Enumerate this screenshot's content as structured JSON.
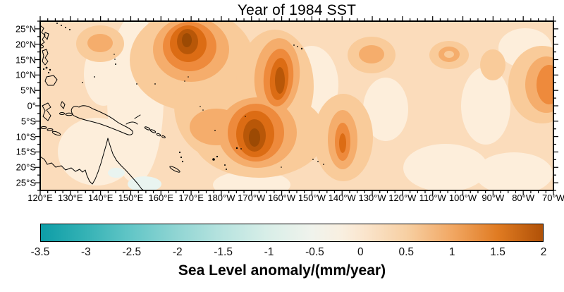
{
  "title": "Year of 1984 SST",
  "chart_data": {
    "type": "filled-contour-map",
    "title": "Year of 1984 SST",
    "region": "Tropical Pacific, 120°E–70°W, 25°S–25°N, coastlines drawn in black",
    "x_axis": {
      "tick_labels": [
        "120°E",
        "130°E",
        "140°E",
        "150°E",
        "160°E",
        "170°E",
        "180°W",
        "170°W",
        "160°W",
        "150°W",
        "140°W",
        "130°W",
        "120°W",
        "110°W",
        "100°W",
        "90°W",
        "80°W",
        "70°W"
      ],
      "span_deg": 170,
      "major_tick_deg": 10,
      "minor_tick_deg": 2.5
    },
    "y_axis": {
      "tick_labels": [
        "25°N",
        "20°N",
        "15°N",
        "10°N",
        "5°N",
        "0°",
        "5°S",
        "10°S",
        "15°S",
        "20°S",
        "25°S"
      ],
      "top_lat": 27.5,
      "bottom_lat": -27.5,
      "major_tick_deg": 5,
      "minor_tick_deg": 2.5
    },
    "colorbar": {
      "label": "Sea Level anomaly/(mm/year)",
      "tick_labels": [
        "-3.5",
        "-3",
        "-2.5",
        "-2",
        "-1.5",
        "-1",
        "-0.5",
        "0",
        "0.5",
        "1",
        "1.5",
        "2"
      ],
      "min": -3.5,
      "max": 2,
      "stops": [
        {
          "pos": 0.0,
          "color": "#0d9da7"
        },
        {
          "pos": 0.09,
          "color": "#35b2b5"
        },
        {
          "pos": 0.18,
          "color": "#63c6c7"
        },
        {
          "pos": 0.27,
          "color": "#90d5d3"
        },
        {
          "pos": 0.36,
          "color": "#b7e3df"
        },
        {
          "pos": 0.45,
          "color": "#d8eee8"
        },
        {
          "pos": 0.54,
          "color": "#f0f3ec"
        },
        {
          "pos": 0.6,
          "color": "#f9efe0"
        },
        {
          "pos": 0.64,
          "color": "#fae6cf"
        },
        {
          "pos": 0.73,
          "color": "#f7cfa2"
        },
        {
          "pos": 0.82,
          "color": "#f1a763"
        },
        {
          "pos": 0.91,
          "color": "#e07b22"
        },
        {
          "pos": 1.0,
          "color": "#b05107"
        }
      ]
    },
    "contour_levels": {
      "neg": "#e9f4f0",
      "l0": "#fdeedb",
      "l1": "#fbdcbb",
      "l2": "#f9cb9a",
      "l3": "#f5ad6c",
      "l4": "#ee8a3c",
      "l5": "#dc6c14",
      "l6": "#b85708",
      "l7": "#9c4a04"
    },
    "anomaly_centers": [
      {
        "lon": "171°E",
        "lat": "21°N",
        "peak_mm_per_year": 2.0
      },
      {
        "lon": "161°W",
        "lat": "12°N",
        "peak_mm_per_year": 1.8
      },
      {
        "lon": "168°W",
        "lat": "9°S",
        "peak_mm_per_year": 2.0
      },
      {
        "lon": "140°W",
        "lat": "13°S",
        "peak_mm_per_year": 1.5
      },
      {
        "lon": "130°W",
        "lat": "17°N",
        "peak_mm_per_year": 1.0
      },
      {
        "lon": "105°W",
        "lat": "17°N",
        "peak_mm_per_year": 1.0
      },
      {
        "lon": "140°E",
        "lat": "20°N",
        "peak_mm_per_year": 1.0
      },
      {
        "lon": "73°W",
        "lat": "8°N",
        "peak_mm_per_year": 1.2
      }
    ],
    "field_background": "Mostly weak positive anomalies (≈0.3–0.6 mm/year, light orange) over the whole domain; faint near-zero patches around 150°E, 150°W, 125°W and the southeastern corner"
  }
}
